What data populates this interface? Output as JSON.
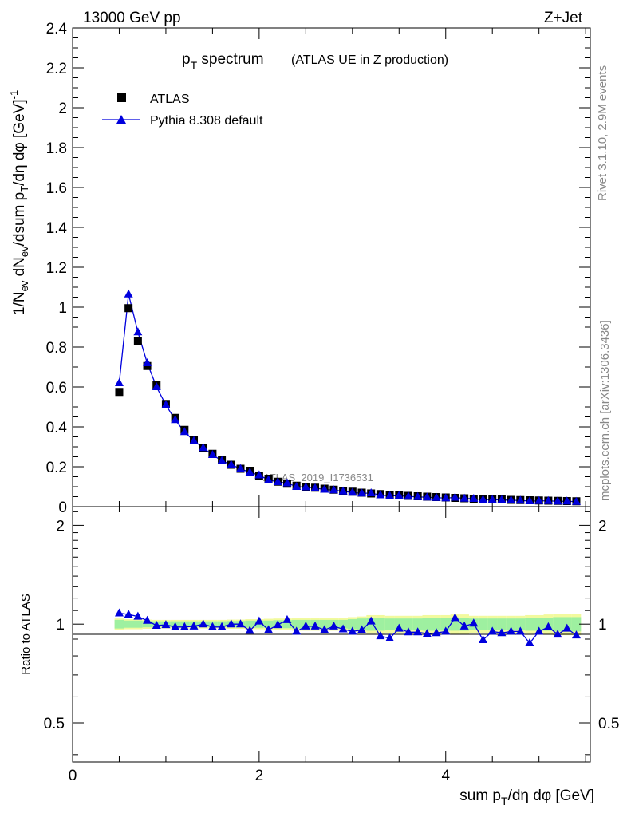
{
  "header": {
    "left": "13000 GeV pp",
    "right": "Z+Jet"
  },
  "title": {
    "main": "p",
    "main_sub": "T",
    "main_rest": " spectrum",
    "detail": "(ATLAS UE in Z production)"
  },
  "side_labels": {
    "rivet": "Rivet 3.1.10,  2.9M events",
    "mcplots": "mcplots.cern.ch [arXiv:1306.3436]"
  },
  "watermark": "ATLAS_2019_I1736531",
  "legend": {
    "data_label": "ATLAS",
    "mc_label": "Pythia 8.308 default"
  },
  "axes": {
    "main_ylabel": "1/N_ev dN_ev/dsum p_T/dη dφ [GeV]^-1",
    "ratio_ylabel": "Ratio to ATLAS",
    "xlabel": "sum p_T/dη dφ [GeV]"
  },
  "colors": {
    "data": "#000000",
    "mc": "#0000dd",
    "band_inner": "#9ef0a0",
    "band_outer": "#f2fa9e"
  },
  "chart_data": [
    {
      "type": "scatter",
      "panel": "main",
      "xlim": [
        0,
        5.55
      ],
      "ylim": [
        0,
        2.4
      ],
      "yticks": [
        0,
        0.2,
        0.4,
        0.6,
        0.8,
        1,
        1.2,
        1.4,
        1.6,
        1.8,
        2,
        2.2,
        2.4
      ],
      "ytick_labels": [
        "0",
        "0.2",
        "0.4",
        "0.6",
        "0.8",
        "1",
        "1.2",
        "1.4",
        "1.6",
        "1.8",
        "2",
        "2.2",
        "2.4"
      ],
      "series": [
        {
          "name": "ATLAS",
          "marker": "square",
          "x": [
            0.5,
            0.6,
            0.7,
            0.8,
            0.9,
            1.0,
            1.1,
            1.2,
            1.3,
            1.4,
            1.5,
            1.6,
            1.7,
            1.8,
            1.9,
            2.0,
            2.1,
            2.2,
            2.3,
            2.4,
            2.5,
            2.6,
            2.7,
            2.8,
            2.9,
            3.0,
            3.1,
            3.2,
            3.3,
            3.4,
            3.5,
            3.6,
            3.7,
            3.8,
            3.9,
            4.0,
            4.1,
            4.2,
            4.3,
            4.4,
            4.5,
            4.6,
            4.7,
            4.8,
            4.9,
            5.0,
            5.1,
            5.2,
            5.3,
            5.4
          ],
          "y": [
            0.575,
            0.995,
            0.83,
            0.705,
            0.61,
            0.515,
            0.445,
            0.385,
            0.335,
            0.295,
            0.265,
            0.235,
            0.21,
            0.19,
            0.18,
            0.155,
            0.14,
            0.125,
            0.115,
            0.105,
            0.1,
            0.095,
            0.09,
            0.085,
            0.08,
            0.075,
            0.07,
            0.066,
            0.063,
            0.06,
            0.057,
            0.054,
            0.052,
            0.05,
            0.048,
            0.046,
            0.044,
            0.042,
            0.04,
            0.039,
            0.037,
            0.036,
            0.034,
            0.033,
            0.032,
            0.031,
            0.03,
            0.029,
            0.028,
            0.027
          ]
        },
        {
          "name": "Pythia 8.308 default",
          "marker": "triangle",
          "x": [
            0.5,
            0.6,
            0.7,
            0.8,
            0.9,
            1.0,
            1.1,
            1.2,
            1.3,
            1.4,
            1.5,
            1.6,
            1.7,
            1.8,
            1.9,
            2.0,
            2.1,
            2.2,
            2.3,
            2.4,
            2.5,
            2.6,
            2.7,
            2.8,
            2.9,
            3.0,
            3.1,
            3.2,
            3.3,
            3.4,
            3.5,
            3.6,
            3.7,
            3.8,
            3.9,
            4.0,
            4.1,
            4.2,
            4.3,
            4.4,
            4.5,
            4.6,
            4.7,
            4.8,
            4.9,
            5.0,
            5.1,
            5.2,
            5.3,
            5.4
          ],
          "y": [
            0.62,
            1.065,
            0.875,
            0.72,
            0.6,
            0.51,
            0.435,
            0.375,
            0.33,
            0.295,
            0.26,
            0.23,
            0.21,
            0.19,
            0.172,
            0.158,
            0.134,
            0.124,
            0.118,
            0.1,
            0.098,
            0.093,
            0.086,
            0.083,
            0.077,
            0.071,
            0.067,
            0.068,
            0.058,
            0.054,
            0.055,
            0.051,
            0.049,
            0.047,
            0.045,
            0.043,
            0.046,
            0.041,
            0.04,
            0.035,
            0.035,
            0.034,
            0.032,
            0.031,
            0.028,
            0.029,
            0.029,
            0.027,
            0.027,
            0.025
          ]
        }
      ]
    },
    {
      "type": "scatter",
      "panel": "ratio",
      "ylabel": "Ratio to ATLAS",
      "xlabel": "sum p_T/dη dφ [GeV]",
      "xlim": [
        0,
        5.55
      ],
      "ylim": [
        0.38,
        2.28
      ],
      "log_y": true,
      "xticks": [
        0,
        2,
        4
      ],
      "xtick_labels": [
        "0",
        "2",
        "4"
      ],
      "yticks": [
        0.5,
        1,
        2
      ],
      "ytick_labels": [
        "0.5",
        "1",
        "2"
      ],
      "band": {
        "x": [
          0.45,
          0.55,
          0.65,
          0.75,
          0.85,
          0.95,
          1.05,
          1.15,
          1.25,
          1.35,
          1.45,
          1.55,
          1.65,
          1.75,
          1.85,
          1.95,
          2.05,
          2.15,
          2.25,
          2.35,
          2.45,
          2.55,
          2.65,
          2.75,
          2.85,
          2.95,
          3.05,
          3.15,
          3.25,
          3.35,
          3.45,
          3.55,
          3.65,
          3.75,
          3.85,
          3.95,
          4.05,
          4.15,
          4.25,
          4.35,
          4.45,
          4.55,
          4.65,
          4.75,
          4.85,
          4.95,
          5.05,
          5.15,
          5.25,
          5.35,
          5.45
        ],
        "inner_half_width": [
          0.03,
          0.025,
          0.025,
          0.022,
          0.02,
          0.02,
          0.02,
          0.02,
          0.02,
          0.02,
          0.02,
          0.02,
          0.022,
          0.022,
          0.025,
          0.025,
          0.025,
          0.028,
          0.028,
          0.03,
          0.03,
          0.03,
          0.03,
          0.03,
          0.03,
          0.035,
          0.04,
          0.045,
          0.045,
          0.04,
          0.04,
          0.04,
          0.04,
          0.045,
          0.045,
          0.045,
          0.045,
          0.045,
          0.04,
          0.04,
          0.04,
          0.04,
          0.04,
          0.04,
          0.045,
          0.045,
          0.045,
          0.05,
          0.05,
          0.05,
          0.05
        ],
        "outer_half_width": [
          0.04,
          0.035,
          0.035,
          0.032,
          0.03,
          0.03,
          0.03,
          0.03,
          0.03,
          0.03,
          0.03,
          0.03,
          0.032,
          0.032,
          0.035,
          0.035,
          0.038,
          0.04,
          0.04,
          0.045,
          0.045,
          0.045,
          0.045,
          0.045,
          0.045,
          0.05,
          0.055,
          0.065,
          0.065,
          0.06,
          0.06,
          0.06,
          0.06,
          0.065,
          0.065,
          0.065,
          0.07,
          0.07,
          0.06,
          0.06,
          0.06,
          0.06,
          0.06,
          0.06,
          0.065,
          0.065,
          0.07,
          0.075,
          0.075,
          0.075,
          0.075
        ]
      },
      "series": [
        {
          "name": "Pythia 8.308 default",
          "marker": "triangle",
          "x": [
            0.5,
            0.6,
            0.7,
            0.8,
            0.9,
            1.0,
            1.1,
            1.2,
            1.3,
            1.4,
            1.5,
            1.6,
            1.7,
            1.8,
            1.9,
            2.0,
            2.1,
            2.2,
            2.3,
            2.4,
            2.5,
            2.6,
            2.7,
            2.8,
            2.9,
            3.0,
            3.1,
            3.2,
            3.3,
            3.4,
            3.5,
            3.6,
            3.7,
            3.8,
            3.9,
            4.0,
            4.1,
            4.2,
            4.3,
            4.4,
            4.5,
            4.6,
            4.7,
            4.8,
            4.9,
            5.0,
            5.1,
            5.2,
            5.3,
            5.4
          ],
          "y": [
            1.08,
            1.07,
            1.055,
            1.025,
            0.99,
            0.995,
            0.98,
            0.98,
            0.985,
            1.0,
            0.98,
            0.98,
            1.0,
            1.0,
            0.955,
            1.02,
            0.96,
            0.995,
            1.03,
            0.95,
            0.985,
            0.985,
            0.96,
            0.985,
            0.965,
            0.95,
            0.96,
            1.02,
            0.92,
            0.905,
            0.97,
            0.945,
            0.945,
            0.935,
            0.94,
            0.95,
            1.045,
            0.985,
            1.005,
            0.895,
            0.95,
            0.94,
            0.95,
            0.95,
            0.875,
            0.95,
            0.98,
            0.93,
            0.97,
            0.925
          ]
        }
      ]
    }
  ]
}
